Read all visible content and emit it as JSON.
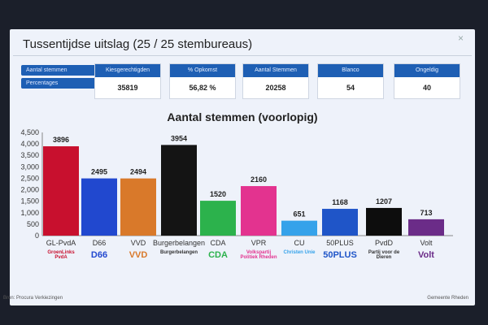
{
  "title": "Tussentijdse uitslag (25 / 25 stembureaus)",
  "close_label": "×",
  "view_buttons": [
    "Aantal stemmen",
    "Percentages"
  ],
  "stats": [
    {
      "label": "Kiesgerechtigden",
      "value": "35819",
      "icon": "users-icon"
    },
    {
      "label": "% Opkomst",
      "value": "56,82 %",
      "icon": "percent-icon"
    },
    {
      "label": "Aantal Stemmen",
      "value": "20258",
      "icon": "checkbox-icon"
    },
    {
      "label": "Blanco",
      "value": "54",
      "icon": "circle-icon"
    },
    {
      "label": "Ongeldig",
      "value": "40",
      "icon": "x-icon"
    }
  ],
  "chart_data": {
    "type": "bar",
    "title": "Aantal stemmen (voorlopig)",
    "categories": [
      "GL-PvdA",
      "D66",
      "VVD",
      "Burgerbelangen",
      "CDA",
      "VPR",
      "CU",
      "50PLUS",
      "PvdD",
      "Volt"
    ],
    "values": [
      3896,
      2495,
      2494,
      3954,
      1520,
      2160,
      651,
      1168,
      1207,
      713
    ],
    "colors": [
      "#c8102e",
      "#2148cf",
      "#d9792a",
      "#141414",
      "#2cb24c",
      "#e3338f",
      "#35a2ea",
      "#1f55c8",
      "#0d0d0d",
      "#6b2c88"
    ],
    "ylim": [
      0,
      4500
    ],
    "yticks": [
      "0",
      "500",
      "1,000",
      "1,500",
      "2,000",
      "2,500",
      "3,000",
      "3,500",
      "4,000",
      "4,500"
    ],
    "grid": false
  },
  "logos": [
    "GroenLinks PvdA",
    "D66",
    "VVD",
    "Burgerbelangen",
    "CDA",
    "Volkspartij Politiek Rheden",
    "Christen Unie",
    "50PLUS",
    "Partij voor de Dieren",
    "Volt"
  ],
  "footer": {
    "left": "Bron: Procura Verkiezingen",
    "right": "Gemeente Rheden"
  }
}
